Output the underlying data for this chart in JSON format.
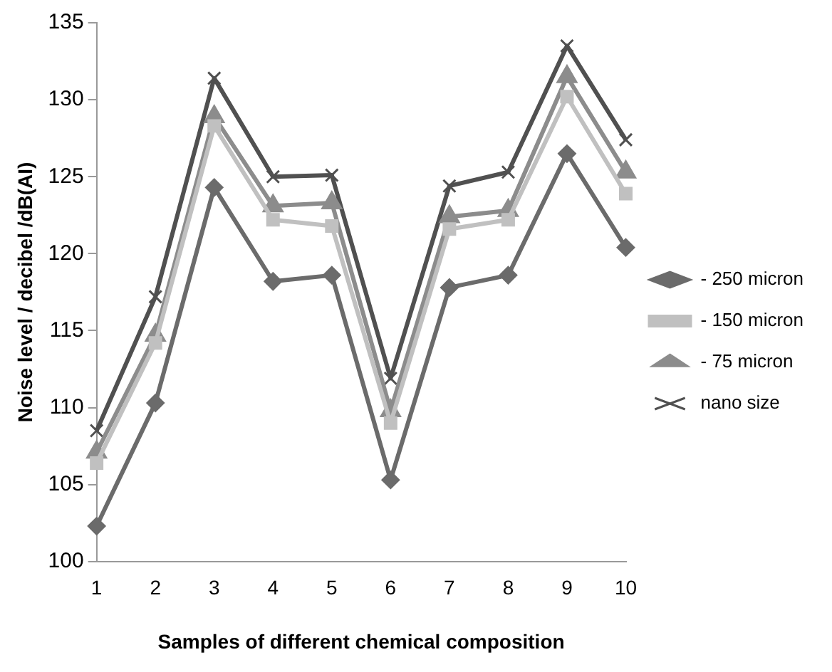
{
  "chart_data": {
    "type": "line",
    "xlabel": "Samples of different chemical composition",
    "ylabel": "Noise level / decibel /dB(AI)",
    "categories": [
      "1",
      "2",
      "3",
      "4",
      "5",
      "6",
      "7",
      "8",
      "9",
      "10"
    ],
    "ylim": [
      100,
      135
    ],
    "yticks": [
      100,
      105,
      110,
      115,
      120,
      125,
      130,
      135
    ],
    "grid": false,
    "legend": "right",
    "line_style": "solid",
    "series": [
      {
        "name": "- 250 micron",
        "color": "#6b6b6b",
        "marker": "diamond",
        "values": [
          102.3,
          110.3,
          124.3,
          118.2,
          118.6,
          105.3,
          117.8,
          118.6,
          126.5,
          120.4
        ]
      },
      {
        "name": "- 150 micron",
        "color": "#c0c0c0",
        "marker": "square",
        "values": [
          106.4,
          114.2,
          128.3,
          122.2,
          121.8,
          109.0,
          121.6,
          122.2,
          130.2,
          123.9
        ]
      },
      {
        "name": "- 75 micron",
        "color": "#8c8c8c",
        "marker": "triangle",
        "values": [
          107.1,
          114.7,
          128.9,
          123.1,
          123.3,
          109.8,
          122.4,
          122.8,
          131.5,
          125.3
        ]
      },
      {
        "name": "nano size",
        "color": "#505050",
        "marker": "cross",
        "values": [
          108.5,
          117.2,
          131.4,
          125.0,
          125.1,
          111.9,
          124.4,
          125.3,
          133.5,
          127.4
        ]
      }
    ]
  }
}
